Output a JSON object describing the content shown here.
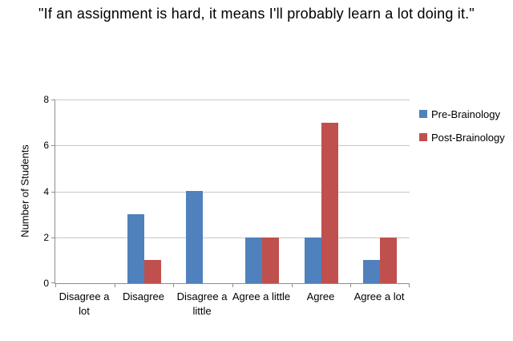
{
  "title": "\"If an assignment is hard, it means I'll probably learn a lot doing it.\"",
  "chart_data": {
    "type": "bar",
    "title": "\"If an assignment is hard, it means I'll probably learn a lot doing it.\"",
    "categories": [
      "Disagree a lot",
      "Disagree",
      "Disagree a little",
      "Agree a little",
      "Agree",
      "Agree a lot"
    ],
    "series": [
      {
        "name": "Pre-Brainology",
        "color": "#4F81BD",
        "values": [
          0,
          3,
          4,
          2,
          2,
          1
        ]
      },
      {
        "name": "Post-Brainology",
        "color": "#C0504D",
        "values": [
          0,
          1,
          0,
          2,
          7,
          2
        ]
      }
    ],
    "xlabel": "",
    "ylabel": "Number of Students",
    "ylim": [
      0,
      8
    ],
    "yticks": [
      0,
      2,
      4,
      6,
      8
    ],
    "grid": true,
    "legend_position": "right",
    "axis_color": "#8e8e8e",
    "gridline_color": "#c8c8c8",
    "background_color": "#ffffff"
  }
}
